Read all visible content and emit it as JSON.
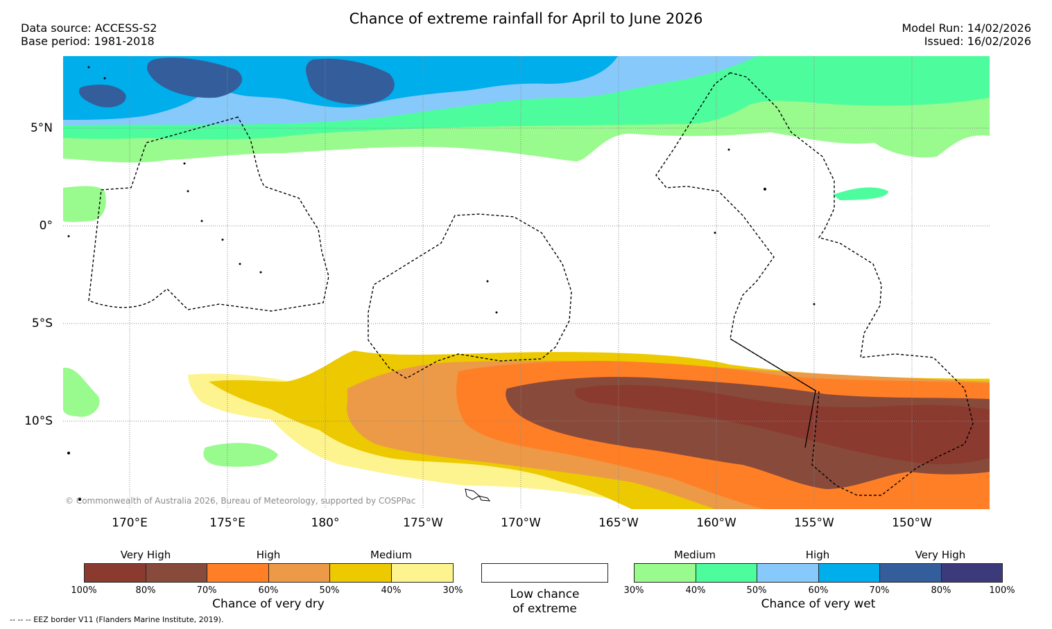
{
  "title": "Chance of extreme rainfall for April to June 2026",
  "meta_left": {
    "source": "Data source: ACCESS-S2",
    "base": "Base period: 1981-2018"
  },
  "meta_right": {
    "run": "Model Run: 14/02/2026",
    "issued": "Issued: 16/02/2026"
  },
  "lat_labels": [
    "5°N",
    "0°",
    "5°S",
    "10°S"
  ],
  "lon_labels": [
    "170°E",
    "175°E",
    "180°",
    "175°W",
    "170°W",
    "165°W",
    "160°W",
    "155°W",
    "150°W"
  ],
  "credit": "© Commonwealth of Australia 2026, Bureau of Meteorology, supported by COSPPac",
  "eez_note": "-- -- -- EEZ border V11 (Flanders Marine Institute, 2019).",
  "legend": {
    "dry": {
      "levels": [
        "Very High",
        "High",
        "Medium"
      ],
      "ticks": [
        "100%",
        "80%",
        "70%",
        "60%",
        "50%",
        "40%",
        "30%"
      ],
      "caption": "Chance of very dry",
      "colors": [
        "#8b3a30",
        "#884a3a",
        "#ff7f26",
        "#ec9a48",
        "#ecc900",
        "#fdf48f"
      ]
    },
    "low": {
      "line1": "Low chance",
      "line2": "of extreme"
    },
    "wet": {
      "levels": [
        "Medium",
        "High",
        "Very High"
      ],
      "ticks": [
        "30%",
        "40%",
        "50%",
        "60%",
        "70%",
        "80%",
        "100%"
      ],
      "caption": "Chance of very wet",
      "colors": [
        "#99fa8d",
        "#4dfd9d",
        "#88c9fb",
        "#00aeec",
        "#335e9b",
        "#3c3a7a"
      ]
    }
  },
  "colors": {
    "very_wet": "#335e9b",
    "wet_high": "#00aeec",
    "wet_mid": "#88c9fb",
    "wet_medium": "#4dfd9d",
    "wet_low": "#99fa8d",
    "very_dry": "#8b3a30",
    "dry_vhigh": "#884a3a",
    "dry_high": "#ff7f26",
    "dry_mid": "#ec9a48",
    "dry_medium": "#ecc900",
    "dry_low": "#fdf48f"
  }
}
